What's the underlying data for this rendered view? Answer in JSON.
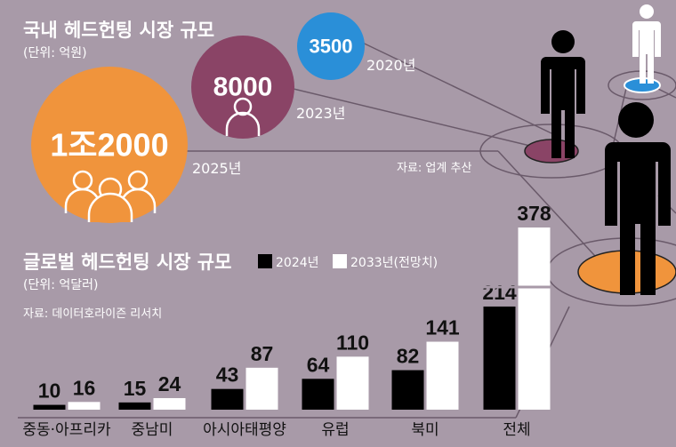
{
  "domestic": {
    "title": "국내 헤드헌팅 시장 규모",
    "unit": "(단위: 억원)",
    "source": "자료: 업계 추산",
    "bubbles": [
      {
        "year": "2025년",
        "label": "1조2000",
        "value": 12000,
        "color": "#f0943c"
      },
      {
        "year": "2023년",
        "label": "8000",
        "value": 8000,
        "color": "#8a4466"
      },
      {
        "year": "2020년",
        "label": "3500",
        "value": 3500,
        "color": "#2a8fd8"
      }
    ]
  },
  "chart_data": {
    "type": "bar",
    "title": "글로벌 헤드헌팅 시장 규모",
    "unit": "(단위: 억달러)",
    "source": "자료: 데이터호라이즌 리서치",
    "categories": [
      "중동·아프리카",
      "중남미",
      "아시아태평양",
      "유럽",
      "북미",
      "전체"
    ],
    "series": [
      {
        "name": "2024년",
        "values": [
          10,
          15,
          43,
          64,
          82,
          214
        ],
        "color": "#000000"
      },
      {
        "name": "2033년(전망치)",
        "values": [
          16,
          24,
          87,
          110,
          141,
          378
        ],
        "color": "#ffffff"
      }
    ],
    "ylim": [
      0,
      378
    ],
    "legend": "top"
  }
}
